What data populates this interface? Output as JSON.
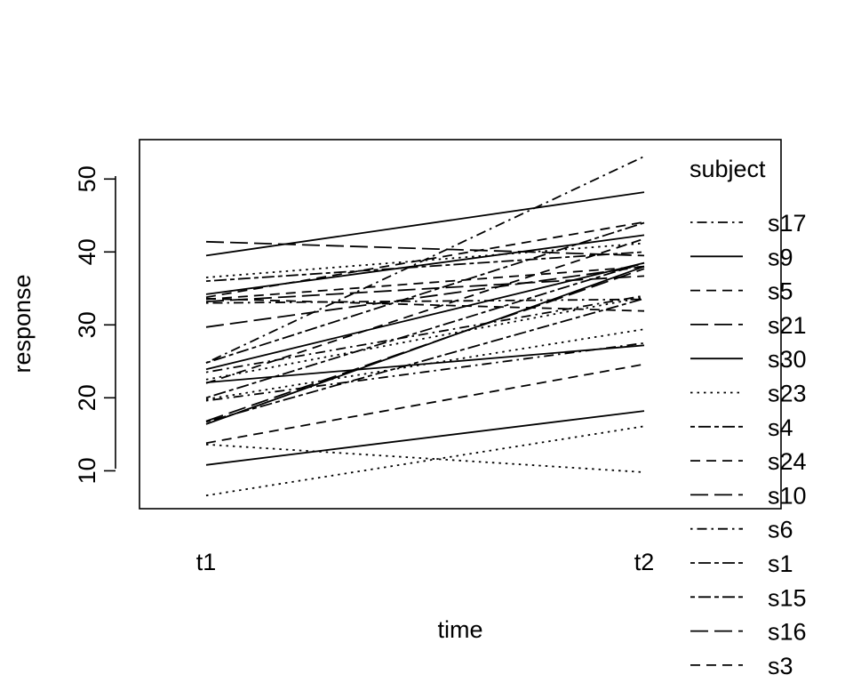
{
  "chart_data": {
    "type": "line",
    "title": "",
    "xlabel": "time",
    "ylabel": "response",
    "categories": [
      "t1",
      "t2"
    ],
    "yticks": [
      10,
      20,
      30,
      40,
      50
    ],
    "ylim": [
      4.8,
      55.4
    ],
    "grid": false,
    "legend": {
      "title": "subject",
      "placement": "right",
      "entries": [
        {
          "name": "s17",
          "style": "dotdash"
        },
        {
          "name": "s9",
          "style": "solid"
        },
        {
          "name": "s5",
          "style": "dashed"
        },
        {
          "name": "s21",
          "style": "longdash"
        },
        {
          "name": "s30",
          "style": "solid"
        },
        {
          "name": "s23",
          "style": "dotted"
        },
        {
          "name": "s4",
          "style": "twodash"
        },
        {
          "name": "s24",
          "style": "dashed"
        },
        {
          "name": "s10",
          "style": "longdash"
        },
        {
          "name": "s6",
          "style": "dotdash"
        },
        {
          "name": "s1",
          "style": "twodash"
        },
        {
          "name": "s15",
          "style": "twodash"
        },
        {
          "name": "s16",
          "style": "longdash"
        },
        {
          "name": "s3",
          "style": "dashed"
        }
      ]
    },
    "series": [
      {
        "style": "solid",
        "values": [
          39.5,
          48.2
        ]
      },
      {
        "style": "longdash",
        "values": [
          41.4,
          39.5
        ]
      },
      {
        "style": "dotdash",
        "values": [
          24.8,
          53.1
        ]
      },
      {
        "style": "solid",
        "values": [
          34.2,
          42.3
        ]
      },
      {
        "style": "dashed",
        "values": [
          33.8,
          44.1
        ]
      },
      {
        "style": "dotted",
        "values": [
          36.5,
          41.2
        ]
      },
      {
        "style": "twodash",
        "values": [
          36.0,
          40.0
        ]
      },
      {
        "style": "dashed",
        "values": [
          33.5,
          38.0
        ]
      },
      {
        "style": "longdash",
        "values": [
          33.2,
          36.7
        ]
      },
      {
        "style": "dotdash",
        "values": [
          33.0,
          33.5
        ]
      },
      {
        "style": "dashed",
        "values": [
          33.6,
          31.9
        ]
      },
      {
        "style": "longdash",
        "values": [
          29.7,
          38.0
        ]
      },
      {
        "style": "twodash",
        "values": [
          24.8,
          44.0
        ]
      },
      {
        "style": "solid",
        "values": [
          23.9,
          38.5
        ]
      },
      {
        "style": "dashed",
        "values": [
          22.0,
          41.8
        ]
      },
      {
        "style": "dotdash",
        "values": [
          23.5,
          34.0
        ]
      },
      {
        "style": "dotted",
        "values": [
          22.5,
          33.8
        ]
      },
      {
        "style": "solid",
        "values": [
          22.1,
          27.2
        ]
      },
      {
        "style": "twodash",
        "values": [
          20.0,
          38.5
        ]
      },
      {
        "style": "dotted",
        "values": [
          19.8,
          29.4
        ]
      },
      {
        "style": "dotdash",
        "values": [
          19.6,
          27.5
        ]
      },
      {
        "style": "longdash",
        "values": [
          16.8,
          37.7
        ]
      },
      {
        "style": "solid",
        "values": [
          16.4,
          38.0
        ]
      },
      {
        "style": "twodash",
        "values": [
          16.7,
          33.6
        ]
      },
      {
        "style": "dashed",
        "values": [
          13.8,
          24.6
        ]
      },
      {
        "style": "dotted",
        "values": [
          13.6,
          9.8
        ]
      },
      {
        "style": "solid",
        "values": [
          10.8,
          18.2
        ]
      },
      {
        "style": "dotted",
        "values": [
          6.6,
          16.1
        ]
      }
    ]
  }
}
